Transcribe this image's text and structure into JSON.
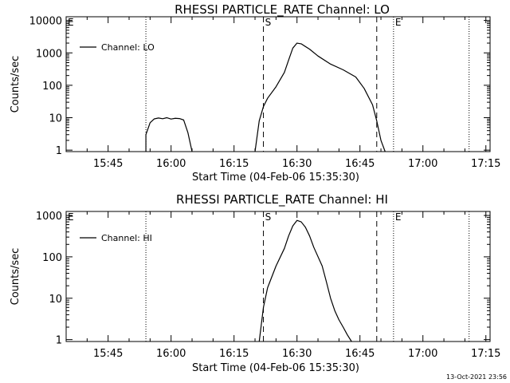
{
  "chart_data": [
    {
      "type": "line",
      "title": "RHESSI PARTICLE_RATE Channel: LO",
      "xlabel": "Start Time (04-Feb-06 15:35:30)",
      "ylabel": "Counts/sec",
      "yscale": "log",
      "ylim": [
        0.9,
        13000
      ],
      "xlim": [
        "15:35",
        "17:16"
      ],
      "x_ticks": [
        "15:45",
        "16:00",
        "16:15",
        "16:30",
        "16:45",
        "17:00",
        "17:15"
      ],
      "y_ticks": [
        {
          "value": 1,
          "label": "1"
        },
        {
          "value": 10,
          "label": "10"
        },
        {
          "value": 100,
          "label": "100"
        },
        {
          "value": 1000,
          "label": "1000"
        },
        {
          "value": 10000,
          "label": "10000"
        }
      ],
      "legend": {
        "position": "top-left",
        "entries": [
          "Channel: LO"
        ]
      },
      "markers": [
        {
          "time": "15:35",
          "label": "E",
          "style": "dotted"
        },
        {
          "time": "15:54",
          "label": "",
          "style": "dotted"
        },
        {
          "time": "16:22",
          "label": "S",
          "style": "dashed"
        },
        {
          "time": "16:49",
          "label": "",
          "style": "dashed"
        },
        {
          "time": "16:53",
          "label": "E",
          "style": "dotted"
        },
        {
          "time": "17:11",
          "label": "",
          "style": "dotted"
        }
      ],
      "series": [
        {
          "name": "Channel: LO",
          "segments": [
            [
              [
                "15:54",
                0.9
              ],
              [
                "15:54",
                3
              ],
              [
                "15:55",
                7
              ],
              [
                "15:56",
                9.2
              ],
              [
                "15:57",
                9.8
              ],
              [
                "15:58",
                9.3
              ],
              [
                "15:59",
                10
              ],
              [
                "16:00",
                9.1
              ],
              [
                "16:01",
                9.6
              ],
              [
                "16:02",
                9.4
              ],
              [
                "16:03",
                8.5
              ],
              [
                "16:04",
                3.5
              ],
              [
                "16:05",
                0.9
              ]
            ],
            [
              [
                "16:20",
                0.9
              ],
              [
                "16:21",
                8
              ],
              [
                "16:22",
                22
              ],
              [
                "16:23",
                40
              ],
              [
                "16:25",
                90
              ],
              [
                "16:27",
                250
              ],
              [
                "16:28",
                600
              ],
              [
                "16:29",
                1400
              ],
              [
                "16:30",
                2000
              ],
              [
                "16:31",
                1900
              ],
              [
                "16:33",
                1300
              ],
              [
                "16:35",
                800
              ],
              [
                "16:38",
                450
              ],
              [
                "16:41",
                300
              ],
              [
                "16:44",
                180
              ],
              [
                "16:46",
                80
              ],
              [
                "16:48",
                25
              ],
              [
                "16:49",
                8
              ],
              [
                "16:50",
                2
              ],
              [
                "16:51",
                0.9
              ]
            ]
          ]
        }
      ]
    },
    {
      "type": "line",
      "title": "RHESSI PARTICLE_RATE Channel: HI",
      "xlabel": "Start Time (04-Feb-06 15:35:30)",
      "ylabel": "Counts/sec",
      "yscale": "log",
      "ylim": [
        0.9,
        1250
      ],
      "xlim": [
        "15:35",
        "17:16"
      ],
      "x_ticks": [
        "15:45",
        "16:00",
        "16:15",
        "16:30",
        "16:45",
        "17:00",
        "17:15"
      ],
      "y_ticks": [
        {
          "value": 1,
          "label": "1"
        },
        {
          "value": 10,
          "label": "10"
        },
        {
          "value": 100,
          "label": "100"
        },
        {
          "value": 1000,
          "label": "1000"
        }
      ],
      "legend": {
        "position": "top-left",
        "entries": [
          "Channel: HI"
        ]
      },
      "markers": [
        {
          "time": "15:35",
          "label": "E",
          "style": "dotted"
        },
        {
          "time": "15:54",
          "label": "",
          "style": "dotted"
        },
        {
          "time": "16:22",
          "label": "S",
          "style": "dashed"
        },
        {
          "time": "16:49",
          "label": "",
          "style": "dashed"
        },
        {
          "time": "16:53",
          "label": "E",
          "style": "dotted"
        },
        {
          "time": "17:11",
          "label": "",
          "style": "dotted"
        }
      ],
      "series": [
        {
          "name": "Channel: HI",
          "segments": [
            [
              [
                "16:21",
                0.9
              ],
              [
                "16:22",
                6
              ],
              [
                "16:23",
                18
              ],
              [
                "16:25",
                60
              ],
              [
                "16:27",
                160
              ],
              [
                "16:28",
                320
              ],
              [
                "16:29",
                560
              ],
              [
                "16:30",
                760
              ],
              [
                "16:31",
                700
              ],
              [
                "16:32",
                520
              ],
              [
                "16:33",
                320
              ],
              [
                "16:34",
                170
              ],
              [
                "16:36",
                60
              ],
              [
                "16:37",
                25
              ],
              [
                "16:38",
                10
              ],
              [
                "16:39",
                5
              ],
              [
                "16:40",
                3
              ],
              [
                "16:41",
                2
              ],
              [
                "16:42",
                1.3
              ],
              [
                "16:43",
                0.9
              ]
            ]
          ]
        }
      ]
    }
  ],
  "footer": {
    "timestamp": "13-Oct-2021 23:56"
  }
}
